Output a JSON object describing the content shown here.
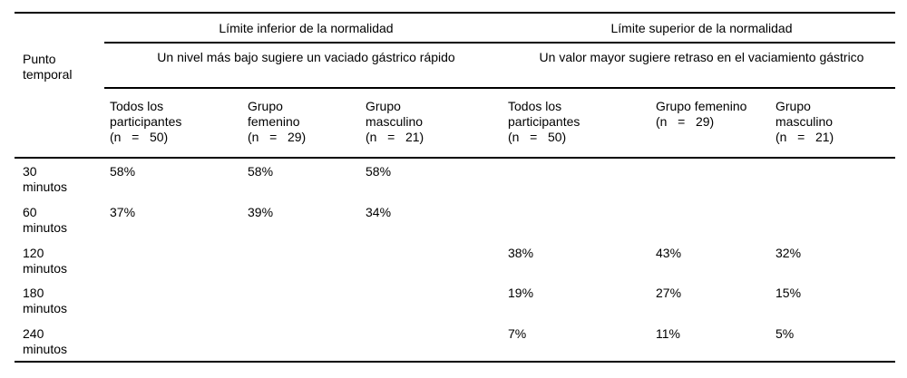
{
  "page": {
    "background_color": "#ffffff",
    "text_color": "#000000",
    "rule_color": "#000000"
  },
  "table": {
    "corner_header": "Punto\ntemporal",
    "groups": [
      {
        "title": "Límite inferior de la normalidad",
        "subtitle": "Un nivel más bajo sugiere un vaciado gástrico rápido"
      },
      {
        "title": "Límite superior de la normalidad",
        "subtitle": "Un valor mayor sugiere retraso en el vaciamiento gástrico"
      }
    ],
    "columns": [
      "Todos los\nparticipantes\n(n   =   50)",
      "Grupo\nfemenino\n(n   =   29)",
      "Grupo\nmasculino\n(n   =   21)",
      "Todos los\nparticipantes\n(n   =   50)",
      "Grupo femenino\n(n   =   29)",
      "Grupo\nmasculino\n(n   =   21)"
    ],
    "rows": [
      {
        "time": "30\nminutos",
        "values": [
          "58%",
          "58%",
          "58%",
          "",
          "",
          ""
        ]
      },
      {
        "time": "60\nminutos",
        "values": [
          "37%",
          "39%",
          "34%",
          "",
          "",
          ""
        ]
      },
      {
        "time": "120\nminutos",
        "values": [
          "",
          "",
          "",
          "38%",
          "43%",
          "32%"
        ]
      },
      {
        "time": "180\nminutos",
        "values": [
          "",
          "",
          "",
          "19%",
          "27%",
          "15%"
        ]
      },
      {
        "time": "240\nminutos",
        "values": [
          "",
          "",
          "",
          "7%",
          "11%",
          "5%"
        ]
      }
    ]
  }
}
